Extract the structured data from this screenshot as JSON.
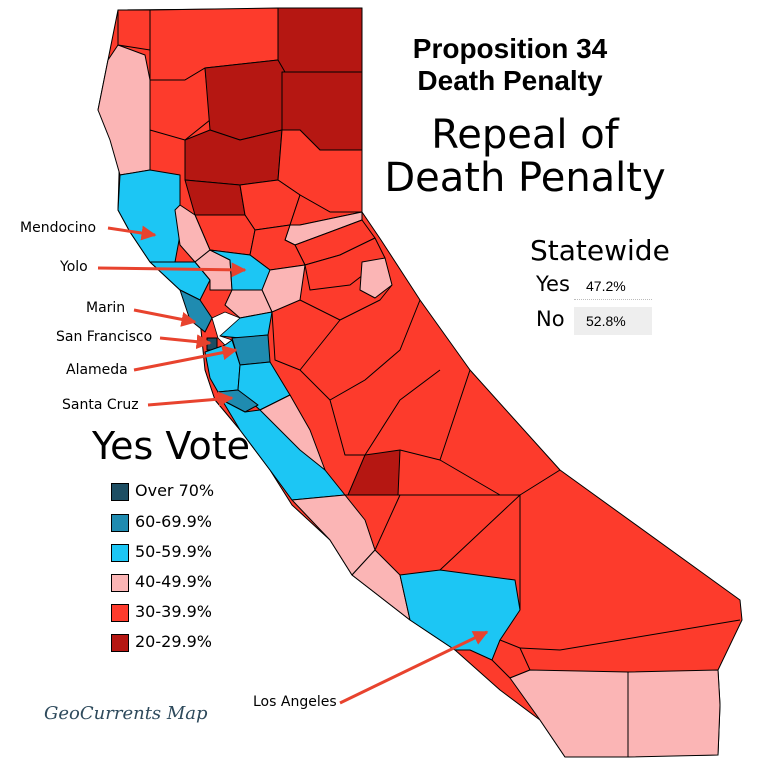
{
  "title_line1": "Proposition 34",
  "title_line2": "Death Penalty",
  "subtitle_line1": "Repeal of",
  "subtitle_line2": "Death Penalty",
  "statewide": {
    "title": "Statewide",
    "yes_label": "Yes",
    "yes_value": "47.2%",
    "no_label": "No",
    "no_value": "52.8%"
  },
  "legend": {
    "title": "Yes Vote",
    "items": [
      {
        "label": "Over 70%",
        "color": "#1d4e63"
      },
      {
        "label": "60-69.9%",
        "color": "#1f8bb0"
      },
      {
        "label": "50-59.9%",
        "color": "#1cc6f4"
      },
      {
        "label": "40-49.9%",
        "color": "#fbb5b5"
      },
      {
        "label": "30-39.9%",
        "color": "#fd3b2c"
      },
      {
        "label": "20-29.9%",
        "color": "#b51712"
      }
    ]
  },
  "county_labels": [
    {
      "name": "Mendocino"
    },
    {
      "name": "Yolo"
    },
    {
      "name": "Marin"
    },
    {
      "name": "San Francisco"
    },
    {
      "name": "Alameda"
    },
    {
      "name": "Santa Cruz"
    },
    {
      "name": "Los Angeles"
    }
  ],
  "arrow_color": "#e8432e",
  "credit": "GeoCurrents Map"
}
